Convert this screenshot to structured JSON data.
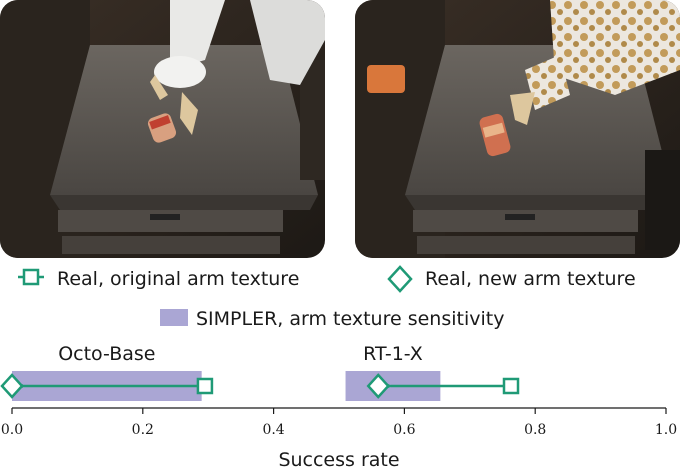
{
  "images": {
    "left": {
      "description": "Robot arm with original white texture grasping a red soda can on a dark wooden table"
    },
    "right": {
      "description": "Robot arm with new patterned texture grasping a red soda can on a dark wooden table"
    }
  },
  "colors": {
    "real": "#1f9a76",
    "simpler": "#aaa6d4",
    "text": "#1a1a1a"
  },
  "chart_data": {
    "type": "interval",
    "xlabel": "Success rate",
    "xlim": [
      0.0,
      1.0
    ],
    "xticks": [
      "0.0",
      "0.2",
      "0.4",
      "0.6",
      "0.8",
      "1.0"
    ],
    "legend": {
      "original": "Real, original arm texture",
      "new": "Real, new arm texture",
      "simpler": "SIMPLER, arm texture sensitivity"
    },
    "groups": [
      {
        "name": "Octo-Base",
        "real_original": 0.295,
        "real_new": 0.0,
        "simpler_range": [
          0.0,
          0.29
        ]
      },
      {
        "name": "RT-1-X",
        "real_original": 0.763,
        "real_new": 0.56,
        "simpler_range": [
          0.51,
          0.655
        ]
      }
    ]
  }
}
